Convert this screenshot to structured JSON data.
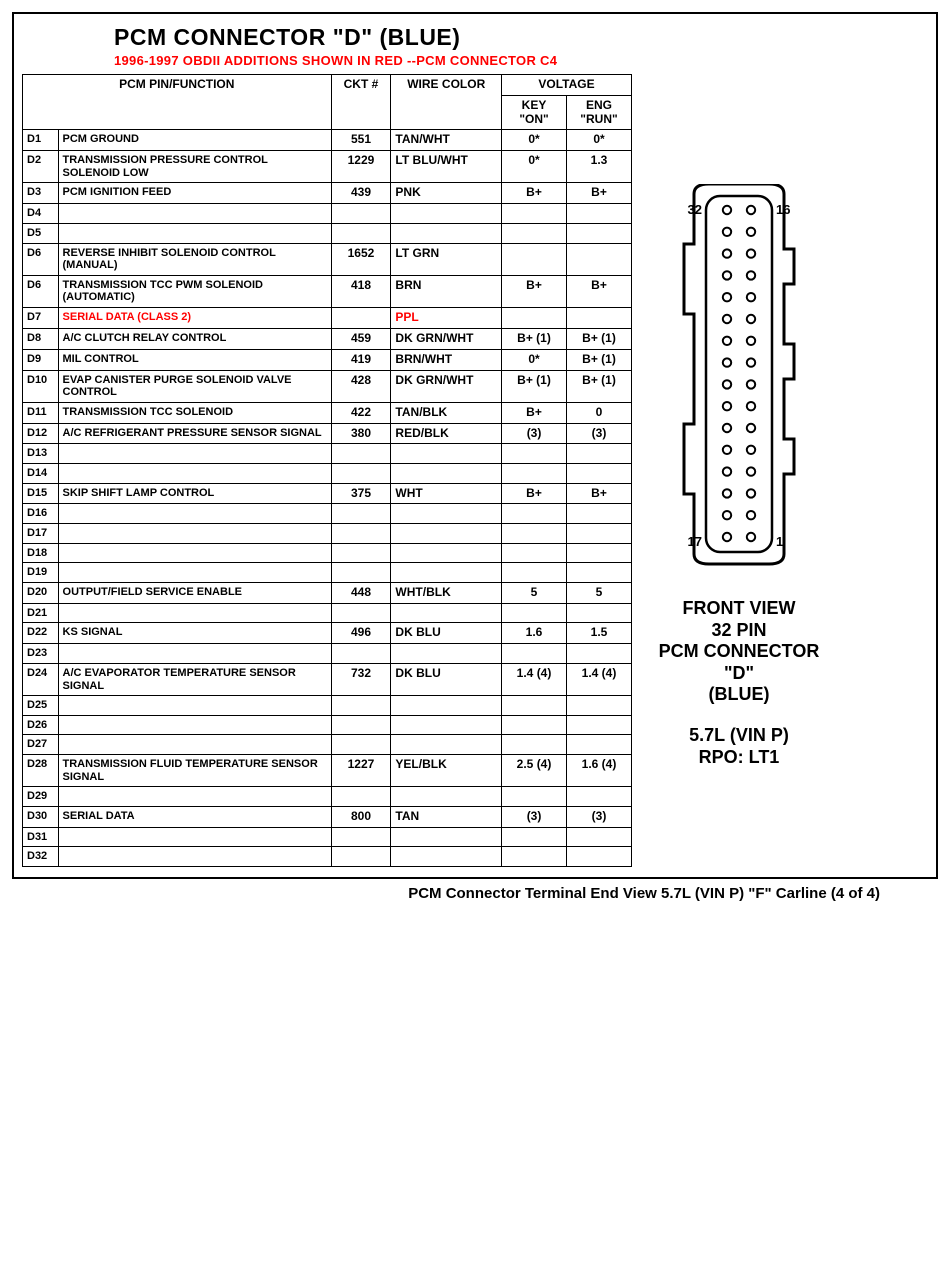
{
  "title": "PCM CONNECTOR \"D\" (BLUE)",
  "subtitle": "1996-1997 OBDII ADDITIONS SHOWN IN RED --PCM CONNECTOR C4",
  "subtitle_color": "#ff0000",
  "headers": {
    "pin_func": "PCM PIN/FUNCTION",
    "ckt": "CKT #",
    "wire": "WIRE COLOR",
    "voltage": "VOLTAGE",
    "key_on": "KEY \"ON\"",
    "eng_run": "ENG \"RUN\""
  },
  "rows": [
    {
      "pin": "D1",
      "func": "PCM GROUND",
      "ckt": "551",
      "wire": "TAN/WHT",
      "kon": "0*",
      "erun": "0*"
    },
    {
      "pin": "D2",
      "func": "TRANSMISSION PRESSURE CONTROL SOLENOID LOW",
      "ckt": "1229",
      "wire": "LT BLU/WHT",
      "kon": "0*",
      "erun": "1.3"
    },
    {
      "pin": "D3",
      "func": "PCM IGNITION FEED",
      "ckt": "439",
      "wire": "PNK",
      "kon": "B+",
      "erun": "B+"
    },
    {
      "pin": "D4",
      "func": "",
      "ckt": "",
      "wire": "",
      "kon": "",
      "erun": ""
    },
    {
      "pin": "D5",
      "func": "",
      "ckt": "",
      "wire": "",
      "kon": "",
      "erun": ""
    },
    {
      "pin": "D6",
      "func": "REVERSE INHIBIT SOLENOID CONTROL (MANUAL)",
      "ckt": "1652",
      "wire": "LT GRN",
      "kon": "",
      "erun": ""
    },
    {
      "pin": "D6",
      "func": "TRANSMISSION  TCC  PWM SOLENOID (AUTOMATIC)",
      "ckt": "418",
      "wire": "BRN",
      "kon": "B+",
      "erun": "B+"
    },
    {
      "pin": "D7",
      "func": "SERIAL DATA (CLASS 2)",
      "ckt": "",
      "wire": "PPL",
      "kon": "",
      "erun": "",
      "red": true
    },
    {
      "pin": "D8",
      "func": "A/C CLUTCH RELAY CONTROL",
      "ckt": "459",
      "wire": "DK GRN/WHT",
      "kon": "B+ (1)",
      "erun": "B+ (1)"
    },
    {
      "pin": "D9",
      "func": "MIL CONTROL",
      "ckt": "419",
      "wire": "BRN/WHT",
      "kon": "0*",
      "erun": "B+ (1)"
    },
    {
      "pin": "D10",
      "func": "EVAP CANISTER PURGE SOLENOID VALVE CONTROL",
      "ckt": "428",
      "wire": "DK GRN/WHT",
      "kon": "B+ (1)",
      "erun": "B+ (1)"
    },
    {
      "pin": "D11",
      "func": "TRANSMISSION TCC SOLENOID",
      "ckt": "422",
      "wire": "TAN/BLK",
      "kon": "B+",
      "erun": "0"
    },
    {
      "pin": "D12",
      "func": "A/C REFRIGERANT PRESSURE SENSOR SIGNAL",
      "ckt": "380",
      "wire": "RED/BLK",
      "kon": "(3)",
      "erun": "(3)"
    },
    {
      "pin": "D13",
      "func": "",
      "ckt": "",
      "wire": "",
      "kon": "",
      "erun": ""
    },
    {
      "pin": "D14",
      "func": "",
      "ckt": "",
      "wire": "",
      "kon": "",
      "erun": ""
    },
    {
      "pin": "D15",
      "func": "SKIP SHIFT LAMP CONTROL",
      "ckt": "375",
      "wire": "WHT",
      "kon": "B+",
      "erun": "B+"
    },
    {
      "pin": "D16",
      "func": "",
      "ckt": "",
      "wire": "",
      "kon": "",
      "erun": ""
    },
    {
      "pin": "D17",
      "func": "",
      "ckt": "",
      "wire": "",
      "kon": "",
      "erun": ""
    },
    {
      "pin": "D18",
      "func": "",
      "ckt": "",
      "wire": "",
      "kon": "",
      "erun": ""
    },
    {
      "pin": "D19",
      "func": "",
      "ckt": "",
      "wire": "",
      "kon": "",
      "erun": ""
    },
    {
      "pin": "D20",
      "func": "OUTPUT/FIELD SERVICE ENABLE",
      "ckt": "448",
      "wire": "WHT/BLK",
      "kon": "5",
      "erun": "5"
    },
    {
      "pin": "D21",
      "func": "",
      "ckt": "",
      "wire": "",
      "kon": "",
      "erun": ""
    },
    {
      "pin": "D22",
      "func": "KS SIGNAL",
      "ckt": "496",
      "wire": "DK BLU",
      "kon": "1.6",
      "erun": "1.5"
    },
    {
      "pin": "D23",
      "func": "",
      "ckt": "",
      "wire": "",
      "kon": "",
      "erun": ""
    },
    {
      "pin": "D24",
      "func": "A/C EVAPORATOR TEMPERATURE SENSOR SIGNAL",
      "ckt": "732",
      "wire": "DK BLU",
      "kon": "1.4 (4)",
      "erun": "1.4 (4)"
    },
    {
      "pin": "D25",
      "func": "",
      "ckt": "",
      "wire": "",
      "kon": "",
      "erun": ""
    },
    {
      "pin": "D26",
      "func": "",
      "ckt": "",
      "wire": "",
      "kon": "",
      "erun": ""
    },
    {
      "pin": "D27",
      "func": "",
      "ckt": "",
      "wire": "",
      "kon": "",
      "erun": ""
    },
    {
      "pin": "D28",
      "func": "TRANSMISSION FLUID TEMPERATURE SENSOR SIGNAL",
      "ckt": "1227",
      "wire": "YEL/BLK",
      "kon": "2.5 (4)",
      "erun": "1.6 (4)"
    },
    {
      "pin": "D29",
      "func": "",
      "ckt": "",
      "wire": "",
      "kon": "",
      "erun": ""
    },
    {
      "pin": "D30",
      "func": "SERIAL DATA",
      "ckt": "800",
      "wire": "TAN",
      "kon": "(3)",
      "erun": "(3)"
    },
    {
      "pin": "D31",
      "func": "",
      "ckt": "",
      "wire": "",
      "kon": "",
      "erun": ""
    },
    {
      "pin": "D32",
      "func": "",
      "ckt": "",
      "wire": "",
      "kon": "",
      "erun": ""
    }
  ],
  "diagram": {
    "pin_labels": {
      "tl": "32",
      "tr": "16",
      "bl": "17",
      "br": "1"
    },
    "caption_lines": [
      "FRONT VIEW",
      "32 PIN",
      "PCM CONNECTOR",
      "\"D\"",
      "(BLUE)"
    ],
    "sub_lines": [
      "5.7L  (VIN P)",
      "RPO:  LT1"
    ]
  },
  "footer": "PCM Connector Terminal End View  5.7L  (VIN P)  \"F\"  Carline  (4 of 4)",
  "colors": {
    "text": "#000000",
    "red": "#ff0000",
    "border": "#000000",
    "background": "#ffffff"
  },
  "fonts": {
    "base_family": "Arial",
    "title_pt": 23,
    "body_pt": 12
  }
}
